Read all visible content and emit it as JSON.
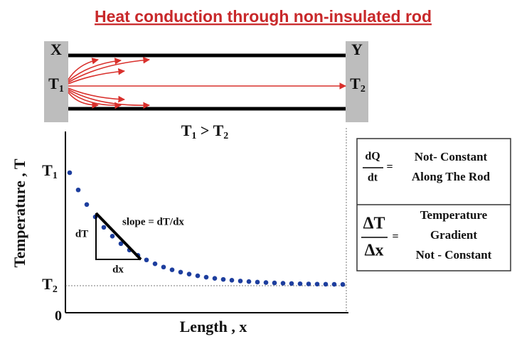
{
  "title": "Heat conduction through non-insulated rod",
  "rod": {
    "left_end": "X",
    "right_end": "Y",
    "left_temp": {
      "main": "T",
      "sub": "1"
    },
    "right_temp": {
      "main": "T",
      "sub": "2"
    },
    "condition": {
      "left": {
        "main": "T",
        "sub": "1"
      },
      "op": ">",
      "right": {
        "main": "T",
        "sub": "2"
      }
    }
  },
  "graph": {
    "y_label": "Temperature , T",
    "x_label": "Length , x",
    "y_top": {
      "main": "T",
      "sub": "1"
    },
    "y_bottom": {
      "main": "T",
      "sub": "2"
    },
    "origin": "0",
    "rise": "dT",
    "run": "dx",
    "slope": "slope = dT/dx"
  },
  "notes": [
    {
      "numerator": "dQ",
      "denominator": "dt",
      "equals": "=",
      "lines": [
        "Not- Constant",
        "Along The Rod"
      ]
    },
    {
      "numerator": "ΔT",
      "denominator": "Δx",
      "equals": "=",
      "lines": [
        "Temperature",
        "Gradient",
        "Not - Constant"
      ]
    }
  ]
}
